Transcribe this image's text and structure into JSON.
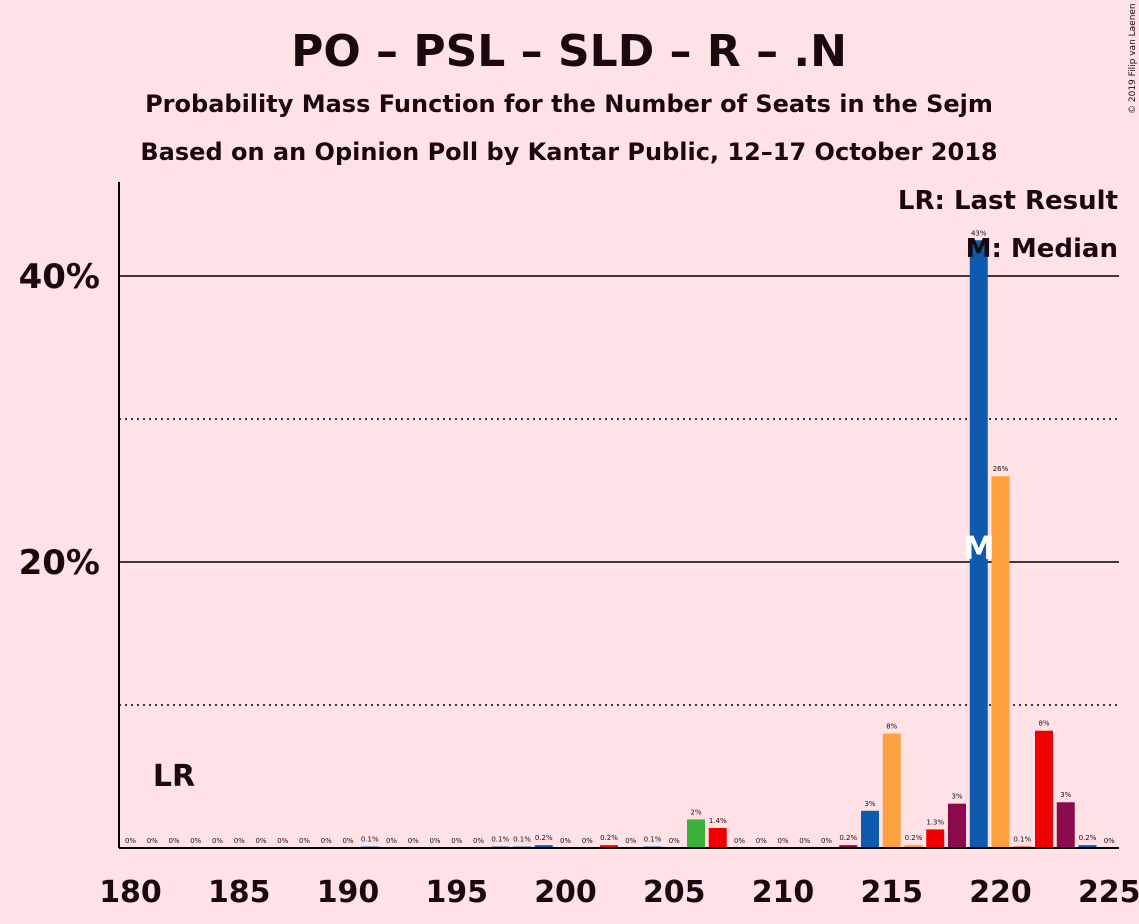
{
  "chart_data": {
    "type": "bar",
    "title": "PO – PSL – SLD – R – .N",
    "subtitle1": "Probability Mass Function for the Number of Seats in the Sejm",
    "subtitle2": "Based on an Opinion Poll by Kantar Public, 12–17 October 2018",
    "copyright": "© 2019 Filip van Laenen",
    "legend": {
      "lr": "LR: Last Result",
      "median": "M: Median"
    },
    "ylim": [
      0,
      46
    ],
    "yticks": [
      {
        "value": 20,
        "label": "20%"
      },
      {
        "value": 40,
        "label": "40%"
      }
    ],
    "dotted_grid": [
      10,
      30
    ],
    "xticks": [
      180,
      185,
      190,
      195,
      200,
      205,
      210,
      215,
      220,
      225
    ],
    "last_result": {
      "seat": 182,
      "label": "LR"
    },
    "median": {
      "seat": 219,
      "label": "M"
    },
    "bars": [
      {
        "x": 180,
        "value": 0,
        "label": "0%",
        "color": "#0D5AAF"
      },
      {
        "x": 181,
        "value": 0,
        "label": "0%",
        "color": "#0D5AAF"
      },
      {
        "x": 182,
        "value": 0,
        "label": "0%",
        "color": "#0D5AAF"
      },
      {
        "x": 183,
        "value": 0,
        "label": "0%",
        "color": "#0D5AAF"
      },
      {
        "x": 184,
        "value": 0,
        "label": "0%",
        "color": "#0D5AAF"
      },
      {
        "x": 185,
        "value": 0,
        "label": "0%",
        "color": "#0D5AAF"
      },
      {
        "x": 186,
        "value": 0,
        "label": "0%",
        "color": "#0D5AAF"
      },
      {
        "x": 187,
        "value": 0,
        "label": "0%",
        "color": "#0D5AAF"
      },
      {
        "x": 188,
        "value": 0,
        "label": "0%",
        "color": "#0D5AAF"
      },
      {
        "x": 189,
        "value": 0,
        "label": "0%",
        "color": "#0D5AAF"
      },
      {
        "x": 190,
        "value": 0,
        "label": "0%",
        "color": "#0D5AAF"
      },
      {
        "x": 191,
        "value": 0.1,
        "label": "0.1%",
        "color": "#0D5AAF"
      },
      {
        "x": 192,
        "value": 0,
        "label": "0%",
        "color": "#0D5AAF"
      },
      {
        "x": 193,
        "value": 0,
        "label": "0%",
        "color": "#0D5AAF"
      },
      {
        "x": 194,
        "value": 0,
        "label": "0%",
        "color": "#0D5AAF"
      },
      {
        "x": 195,
        "value": 0,
        "label": "0%",
        "color": "#0D5AAF"
      },
      {
        "x": 196,
        "value": 0,
        "label": "0%",
        "color": "#0D5AAF"
      },
      {
        "x": 197,
        "value": 0.1,
        "label": "0.1%",
        "color": "#0D5AAF"
      },
      {
        "x": 198,
        "value": 0.1,
        "label": "0.1%",
        "color": "#0D5AAF"
      },
      {
        "x": 199,
        "value": 0.2,
        "label": "0.2%",
        "color": "#0D5AAF"
      },
      {
        "x": 200,
        "value": 0,
        "label": "0%",
        "color": "#0D5AAF"
      },
      {
        "x": 201,
        "value": 0,
        "label": "0%",
        "color": "#0D5AAF"
      },
      {
        "x": 202,
        "value": 0.2,
        "label": "0.2%",
        "color": "#E10A0A"
      },
      {
        "x": 203,
        "value": 0,
        "label": "0%",
        "color": "#0D5AAF"
      },
      {
        "x": 204,
        "value": 0.1,
        "label": "0.1%",
        "color": "#0D5AAF"
      },
      {
        "x": 205,
        "value": 0,
        "label": "0%",
        "color": "#0D5AAF"
      },
      {
        "x": 206,
        "value": 2,
        "label": "2%",
        "color": "#3BB03B"
      },
      {
        "x": 207,
        "value": 1.4,
        "label": "1.4%",
        "color": "#F20000"
      },
      {
        "x": 208,
        "value": 0,
        "label": "0%",
        "color": "#0D5AAF"
      },
      {
        "x": 209,
        "value": 0,
        "label": "0%",
        "color": "#0D5AAF"
      },
      {
        "x": 210,
        "value": 0,
        "label": "0%",
        "color": "#0D5AAF"
      },
      {
        "x": 211,
        "value": 0,
        "label": "0%",
        "color": "#0D5AAF"
      },
      {
        "x": 212,
        "value": 0,
        "label": "0%",
        "color": "#0D5AAF"
      },
      {
        "x": 213,
        "value": 0.2,
        "label": "0.2%",
        "color": "#8B0A4E"
      },
      {
        "x": 214,
        "value": 2.6,
        "label": "3%",
        "color": "#0D5AAF"
      },
      {
        "x": 215,
        "value": 8,
        "label": "8%",
        "color": "#FFA040"
      },
      {
        "x": 216,
        "value": 0.2,
        "label": "0.2%",
        "color": "#FFA040"
      },
      {
        "x": 217,
        "value": 1.3,
        "label": "1.3%",
        "color": "#F20000"
      },
      {
        "x": 218,
        "value": 3.1,
        "label": "3%",
        "color": "#8B0A4E"
      },
      {
        "x": 219,
        "value": 42.5,
        "label": "43%",
        "color": "#0D5AAF"
      },
      {
        "x": 220,
        "value": 26,
        "label": "26%",
        "color": "#FFA040"
      },
      {
        "x": 221,
        "value": 0.1,
        "label": "0.1%",
        "color": "#F20000"
      },
      {
        "x": 222,
        "value": 8.2,
        "label": "8%",
        "color": "#F20000"
      },
      {
        "x": 223,
        "value": 3.2,
        "label": "3%",
        "color": "#8B0A4E"
      },
      {
        "x": 224,
        "value": 0.2,
        "label": "0.2%",
        "color": "#0D5AAF"
      },
      {
        "x": 225,
        "value": 0,
        "label": "0%",
        "color": "#0D5AAF"
      }
    ]
  }
}
